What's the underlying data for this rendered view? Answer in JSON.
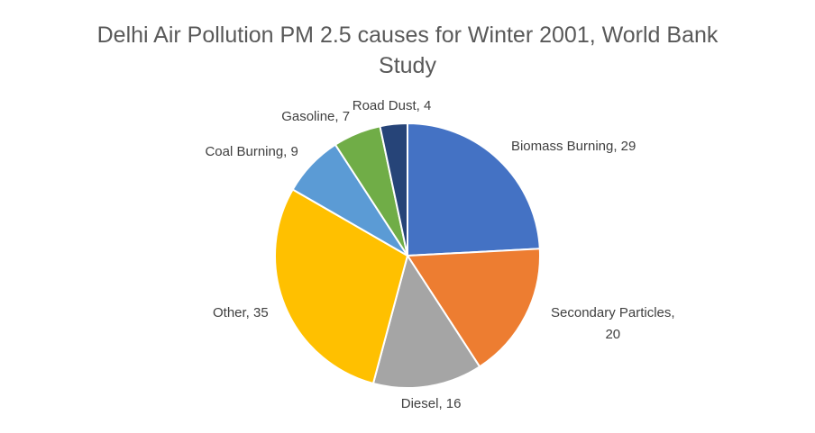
{
  "chart_data": {
    "type": "pie",
    "title": "Delhi Air Pollution PM 2.5 causes for Winter 2001, World Bank Study",
    "categories": [
      "Biomass Burning",
      "Secondary Particles",
      "Diesel",
      "Other",
      "Coal Burning",
      "Gasoline",
      "Road Dust"
    ],
    "values": [
      29,
      20,
      16,
      35,
      9,
      7,
      4
    ],
    "value_labels": [
      "Biomass Burning, 29",
      "Secondary Particles, 20",
      "Diesel, 16",
      "Other, 35",
      "Coal Burning, 9",
      "Gasoline, 7",
      "Road Dust, 4"
    ],
    "colors": [
      "#4472c4",
      "#ed7d31",
      "#a5a5a5",
      "#ffc000",
      "#5b9bd5",
      "#70ad47",
      "#264478"
    ]
  }
}
